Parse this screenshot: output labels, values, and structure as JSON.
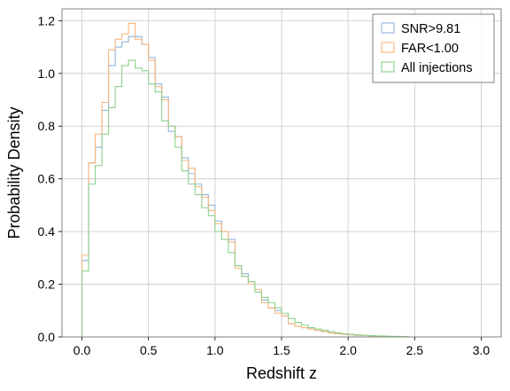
{
  "chart_data": {
    "type": "histogram",
    "title": "",
    "xlabel": "Redshift z",
    "ylabel": "Probability Density",
    "xlim": [
      -0.15,
      3.15
    ],
    "ylim": [
      0,
      1.245
    ],
    "xticks": [
      0.0,
      0.5,
      1.0,
      1.5,
      2.0,
      2.5,
      3.0
    ],
    "xtick_labels": [
      "0.0",
      "0.5",
      "1.0",
      "1.5",
      "2.0",
      "2.5",
      "3.0"
    ],
    "yticks": [
      0.0,
      0.2,
      0.4,
      0.6,
      0.8,
      1.0,
      1.2
    ],
    "ytick_labels": [
      "0.0",
      "0.2",
      "0.4",
      "0.6",
      "0.8",
      "1.0",
      "1.2"
    ],
    "grid": true,
    "legend_position": "top-right",
    "bin_edges": [
      0.0,
      0.05,
      0.1,
      0.15,
      0.2,
      0.25,
      0.3,
      0.35,
      0.4,
      0.45,
      0.5,
      0.55,
      0.6,
      0.65,
      0.7,
      0.75,
      0.8,
      0.85,
      0.9,
      0.95,
      1.0,
      1.05,
      1.1,
      1.15,
      1.2,
      1.25,
      1.3,
      1.35,
      1.4,
      1.45,
      1.5,
      1.55,
      1.6,
      1.65,
      1.7,
      1.75,
      1.8,
      1.85,
      1.9,
      1.95,
      2.0,
      2.05,
      2.1,
      2.15,
      2.2,
      2.25,
      2.3,
      2.35,
      2.4,
      2.45,
      2.5
    ],
    "series": [
      {
        "name": "SNR>9.81",
        "color": "#8fb5dc",
        "values": [
          0.29,
          0.66,
          0.72,
          0.86,
          1.03,
          1.1,
          1.12,
          1.14,
          1.14,
          1.11,
          1.06,
          0.96,
          0.91,
          0.78,
          0.76,
          0.68,
          0.62,
          0.58,
          0.54,
          0.5,
          0.44,
          0.4,
          0.37,
          0.27,
          0.24,
          0.21,
          0.18,
          0.14,
          0.11,
          0.1,
          0.08,
          0.05,
          0.04,
          0.035,
          0.03,
          0.025,
          0.02,
          0.015,
          0.012,
          0.01,
          0.008,
          0.006,
          0.005,
          0.004,
          0.003,
          0.002,
          0.002,
          0.001,
          0.001,
          0.0
        ]
      },
      {
        "name": "FAR<1.00",
        "color": "#f8b67c",
        "values": [
          0.31,
          0.66,
          0.77,
          0.89,
          1.09,
          1.13,
          1.15,
          1.19,
          1.13,
          1.11,
          1.05,
          0.95,
          0.9,
          0.8,
          0.76,
          0.67,
          0.64,
          0.57,
          0.53,
          0.48,
          0.43,
          0.4,
          0.36,
          0.26,
          0.23,
          0.2,
          0.18,
          0.13,
          0.11,
          0.09,
          0.08,
          0.05,
          0.04,
          0.035,
          0.03,
          0.025,
          0.02,
          0.015,
          0.012,
          0.01,
          0.008,
          0.006,
          0.005,
          0.004,
          0.003,
          0.002,
          0.002,
          0.001,
          0.001,
          0.0
        ]
      },
      {
        "name": "All injections",
        "color": "#8dd08d",
        "values": [
          0.25,
          0.58,
          0.65,
          0.77,
          0.87,
          0.95,
          1.03,
          1.05,
          1.02,
          1.01,
          0.96,
          0.93,
          0.82,
          0.8,
          0.72,
          0.63,
          0.58,
          0.54,
          0.49,
          0.46,
          0.4,
          0.37,
          0.32,
          0.27,
          0.23,
          0.21,
          0.17,
          0.15,
          0.13,
          0.11,
          0.09,
          0.07,
          0.055,
          0.045,
          0.035,
          0.03,
          0.025,
          0.02,
          0.015,
          0.012,
          0.01,
          0.008,
          0.006,
          0.005,
          0.004,
          0.003,
          0.002,
          0.002,
          0.001,
          0.0
        ]
      }
    ]
  }
}
